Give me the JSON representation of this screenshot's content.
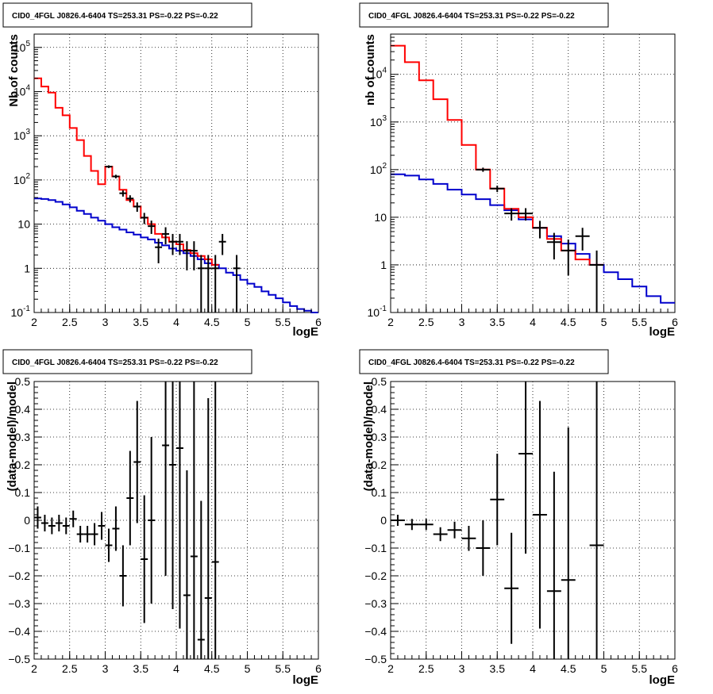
{
  "colors": {
    "data": "#000000",
    "total_model": "#ff0000",
    "component_model": "#0000cc",
    "grid": "#000000",
    "background": "#ffffff"
  },
  "chart_data": [
    {
      "type": "step",
      "title": "CID0_4FGL J0826.4-6404 TS=253.31 PS=-0.22 PS=-0.22",
      "xlabel": "logE",
      "ylabel": "Nb of counts",
      "xlim": [
        2,
        6
      ],
      "ylim": [
        0.1,
        200000
      ],
      "yscale": "log",
      "grid": true,
      "x_ticks": [
        "2",
        "2.5",
        "3",
        "3.5",
        "4",
        "4.5",
        "5",
        "5.5",
        "6"
      ],
      "y_ticks": [
        {
          "base": "10",
          "exp": "-1"
        },
        {
          "base": "1",
          "exp": ""
        },
        {
          "base": "10",
          "exp": ""
        },
        {
          "base": "10",
          "exp": "2"
        },
        {
          "base": "10",
          "exp": "3"
        },
        {
          "base": "10",
          "exp": "4"
        },
        {
          "base": "10",
          "exp": "5"
        }
      ],
      "bin_edges": [
        2,
        2.1,
        2.2,
        2.3,
        2.4,
        2.5,
        2.6,
        2.7,
        2.8,
        2.9,
        3,
        3.1,
        3.2,
        3.3,
        3.4,
        3.5,
        3.6,
        3.7,
        3.8,
        3.9,
        4,
        4.1,
        4.2,
        4.3,
        4.4,
        4.5,
        4.6,
        4.7,
        4.8,
        4.9,
        5,
        5.1,
        5.2,
        5.3,
        5.4,
        5.5,
        5.6,
        5.7,
        5.8,
        5.9,
        6
      ],
      "series": [
        {
          "role": "total-model",
          "values": [
            20000,
            13000,
            9500,
            4300,
            2900,
            1500,
            800,
            350,
            160,
            80,
            200,
            120,
            60,
            35,
            25,
            14,
            10,
            6,
            5,
            4,
            3.5,
            2.6,
            2.2,
            1.9,
            1.6,
            1.2
          ]
        },
        {
          "role": "component-model",
          "values": [
            38,
            37,
            35,
            32,
            28,
            24,
            20,
            17,
            14,
            12,
            10,
            8.5,
            7.5,
            6.5,
            5.8,
            5,
            4.5,
            3.8,
            3.3,
            2.8,
            2.5,
            2.2,
            1.9,
            1.6,
            1.3,
            1.2,
            1.0,
            0.8,
            0.7,
            0.55,
            0.45,
            0.38,
            0.3,
            0.25,
            0.21,
            0.17,
            0.14,
            0.12,
            0.11,
            0.1
          ]
        }
      ],
      "data_points": [
        {
          "x": 3.05,
          "y": 200,
          "err": 14
        },
        {
          "x": 3.15,
          "y": 120,
          "err": 11
        },
        {
          "x": 3.25,
          "y": 50,
          "err": 8
        },
        {
          "x": 3.35,
          "y": 38,
          "err": 7
        },
        {
          "x": 3.45,
          "y": 25,
          "err": 6
        },
        {
          "x": 3.55,
          "y": 14,
          "err": 4
        },
        {
          "x": 3.65,
          "y": 9,
          "err": 3
        },
        {
          "x": 3.75,
          "y": 3,
          "err": 1.7
        },
        {
          "x": 3.85,
          "y": 6,
          "err": 2.5
        },
        {
          "x": 3.95,
          "y": 4,
          "err": 2
        },
        {
          "x": 4.05,
          "y": 4,
          "err": 2
        },
        {
          "x": 4.15,
          "y": 2.5,
          "err": 1.6
        },
        {
          "x": 4.25,
          "y": 2.5,
          "err": 1.6
        },
        {
          "x": 4.35,
          "y": 1,
          "err": 1
        },
        {
          "x": 4.45,
          "y": 1,
          "err": 1
        },
        {
          "x": 4.55,
          "y": 1,
          "err": 1
        },
        {
          "x": 4.65,
          "y": 4,
          "err": 2
        },
        {
          "x": 4.85,
          "y": 1,
          "err": 1
        }
      ]
    },
    {
      "type": "step",
      "title": "CID0_4FGL J0826.4-6404 TS=253.31 PS=-0.22 PS=-0.22",
      "xlabel": "logE",
      "ylabel": "nb of counts",
      "xlim": [
        2,
        6
      ],
      "ylim": [
        0.1,
        70000
      ],
      "yscale": "log",
      "grid": true,
      "x_ticks": [
        "2",
        "2.5",
        "3",
        "3.5",
        "4",
        "4.5",
        "5",
        "5.5",
        "6"
      ],
      "y_ticks": [
        {
          "base": "10",
          "exp": "-1"
        },
        {
          "base": "1",
          "exp": ""
        },
        {
          "base": "10",
          "exp": ""
        },
        {
          "base": "10",
          "exp": "2"
        },
        {
          "base": "10",
          "exp": "3"
        },
        {
          "base": "10",
          "exp": "4"
        }
      ],
      "bin_edges": [
        2,
        2.2,
        2.4,
        2.6,
        2.8,
        3,
        3.2,
        3.4,
        3.6,
        3.8,
        4,
        4.2,
        4.4,
        4.6,
        4.8,
        5,
        5.2,
        5.4,
        5.6,
        5.8,
        6
      ],
      "series": [
        {
          "role": "total-model",
          "values": [
            40000,
            18000,
            7500,
            3000,
            1100,
            330,
            100,
            40,
            15,
            10,
            6,
            3.5,
            2,
            1.3,
            1
          ]
        },
        {
          "role": "component-model",
          "values": [
            80,
            75,
            62,
            50,
            38,
            30,
            24,
            18,
            14,
            9,
            6,
            4,
            2.8,
            1.7,
            1,
            0.7,
            0.5,
            0.35,
            0.22,
            0.16
          ]
        }
      ],
      "data_points": [
        {
          "x": 3.3,
          "y": 100,
          "err": 10
        },
        {
          "x": 3.5,
          "y": 40,
          "err": 6
        },
        {
          "x": 3.7,
          "y": 12,
          "err": 3.5
        },
        {
          "x": 3.9,
          "y": 12,
          "err": 3.5
        },
        {
          "x": 4.1,
          "y": 6,
          "err": 2.4
        },
        {
          "x": 4.3,
          "y": 3,
          "err": 1.7
        },
        {
          "x": 4.5,
          "y": 2,
          "err": 1.4
        },
        {
          "x": 4.7,
          "y": 4,
          "err": 2
        },
        {
          "x": 4.9,
          "y": 1,
          "err": 1
        }
      ]
    },
    {
      "type": "errorbar",
      "title": "CID0_4FGL J0826.4-6404 TS=253.31 PS=-0.22 PS=-0.22",
      "xlabel": "logE",
      "ylabel": "(data-model)/model",
      "xlim": [
        2,
        6
      ],
      "ylim": [
        -0.5,
        0.5
      ],
      "grid": true,
      "x_ticks": [
        "2",
        "2.5",
        "3",
        "3.5",
        "4",
        "4.5",
        "5",
        "5.5",
        "6"
      ],
      "y_ticks": [
        "−0.5",
        "−0.4",
        "−0.3",
        "−0.2",
        "−0.1",
        "0",
        "0.1",
        "0.2",
        "0.3",
        "0.4",
        "0.5"
      ],
      "x_half_width": 0.05,
      "points": [
        {
          "x": 2.05,
          "y": 0.01,
          "err": 0.04
        },
        {
          "x": 2.15,
          "y": -0.01,
          "err": 0.03
        },
        {
          "x": 2.25,
          "y": -0.02,
          "err": 0.03
        },
        {
          "x": 2.35,
          "y": -0.01,
          "err": 0.03
        },
        {
          "x": 2.45,
          "y": -0.02,
          "err": 0.03
        },
        {
          "x": 2.55,
          "y": 0.005,
          "err": 0.03
        },
        {
          "x": 2.65,
          "y": -0.05,
          "err": 0.03
        },
        {
          "x": 2.75,
          "y": -0.05,
          "err": 0.03
        },
        {
          "x": 2.85,
          "y": -0.05,
          "err": 0.04
        },
        {
          "x": 2.95,
          "y": -0.02,
          "err": 0.05
        },
        {
          "x": 3.05,
          "y": -0.09,
          "err": 0.06
        },
        {
          "x": 3.15,
          "y": -0.03,
          "err": 0.08
        },
        {
          "x": 3.25,
          "y": -0.2,
          "err": 0.11
        },
        {
          "x": 3.35,
          "y": 0.08,
          "err": 0.17
        },
        {
          "x": 3.45,
          "y": 0.21,
          "err": 0.22
        },
        {
          "x": 3.55,
          "y": -0.14,
          "err": 0.23
        },
        {
          "x": 3.65,
          "y": 0.0,
          "err": 0.3
        },
        {
          "x": 3.85,
          "y": 0.27,
          "err": 0.47
        },
        {
          "x": 3.95,
          "y": 0.2,
          "err": 0.52
        },
        {
          "x": 4.05,
          "y": 0.26,
          "err": 0.65
        },
        {
          "x": 4.15,
          "y": -0.27,
          "err": 0.45
        },
        {
          "x": 4.25,
          "y": -0.13,
          "err": 0.7
        },
        {
          "x": 4.35,
          "y": -0.43,
          "err": 0.5
        },
        {
          "x": 4.45,
          "y": -0.28,
          "err": 0.72
        },
        {
          "x": 4.55,
          "y": -0.15,
          "err": 0.7
        }
      ]
    },
    {
      "type": "errorbar",
      "title": "CID0_4FGL J0826.4-6404 TS=253.31 PS=-0.22 PS=-0.22",
      "xlabel": "logE",
      "ylabel": "(data-model)/model",
      "xlim": [
        2,
        6
      ],
      "ylim": [
        -0.5,
        0.5
      ],
      "grid": true,
      "x_ticks": [
        "2",
        "2.5",
        "3",
        "3.5",
        "4",
        "4.5",
        "5",
        "5.5",
        "6"
      ],
      "y_ticks": [
        "−0.5",
        "−0.4",
        "−0.3",
        "−0.2",
        "−0.1",
        "0",
        "0.1",
        "0.2",
        "0.3",
        "0.4",
        "0.5"
      ],
      "x_half_width": 0.1,
      "points": [
        {
          "x": 2.1,
          "y": 0.0,
          "err": 0.02
        },
        {
          "x": 2.3,
          "y": -0.015,
          "err": 0.02
        },
        {
          "x": 2.5,
          "y": -0.015,
          "err": 0.02
        },
        {
          "x": 2.7,
          "y": -0.05,
          "err": 0.025
        },
        {
          "x": 2.9,
          "y": -0.035,
          "err": 0.03
        },
        {
          "x": 3.1,
          "y": -0.065,
          "err": 0.045
        },
        {
          "x": 3.3,
          "y": -0.1,
          "err": 0.1
        },
        {
          "x": 3.5,
          "y": 0.075,
          "err": 0.165
        },
        {
          "x": 3.7,
          "y": -0.245,
          "err": 0.2
        },
        {
          "x": 3.9,
          "y": 0.24,
          "err": 0.36
        },
        {
          "x": 4.1,
          "y": 0.02,
          "err": 0.41
        },
        {
          "x": 4.3,
          "y": -0.255,
          "err": 0.43
        },
        {
          "x": 4.5,
          "y": -0.215,
          "err": 0.55
        },
        {
          "x": 4.9,
          "y": -0.09,
          "err": 0.75
        }
      ]
    }
  ]
}
